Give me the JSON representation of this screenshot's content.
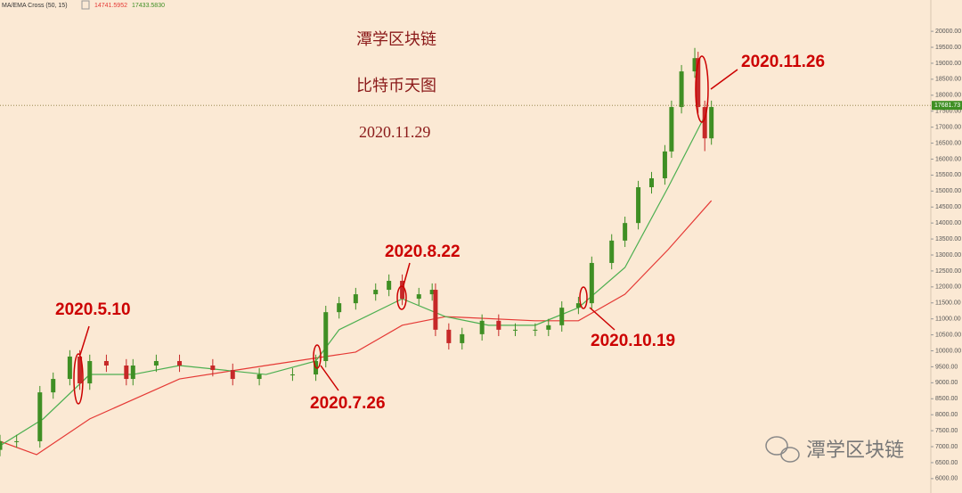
{
  "chart_data": {
    "type": "candlestick",
    "title": "潭学区块链",
    "subtitle": "比特币天图",
    "date": "2020.11.29",
    "indicator": "MA/EMA Cross (50, 15)",
    "indicator_readout": [
      {
        "value": 14741.5952,
        "label": "14741.5952"
      },
      {
        "value": 17433.583,
        "label": "17433.5830"
      }
    ],
    "watermark": "潭学区块链",
    "last_price": 17681.73,
    "xlim": [
      0,
      280
    ],
    "ylim": [
      5550,
      20980
    ],
    "yticks": [
      {
        "value": 6000,
        "label": "6000.00"
      },
      {
        "value": 6500,
        "label": "6500.00"
      },
      {
        "value": 7000,
        "label": "7000.00"
      },
      {
        "value": 7500,
        "label": "7500.00"
      },
      {
        "value": 8000,
        "label": "8000.00"
      },
      {
        "value": 8500,
        "label": "8500.00"
      },
      {
        "value": 9000,
        "label": "9000.00"
      },
      {
        "value": 9500,
        "label": "9500.00"
      },
      {
        "value": 10000,
        "label": "10000.00"
      },
      {
        "value": 10500,
        "label": "10500.00"
      },
      {
        "value": 11000,
        "label": "11000.00"
      },
      {
        "value": 11500,
        "label": "11500.00"
      },
      {
        "value": 12000,
        "label": "12000.00"
      },
      {
        "value": 12500,
        "label": "12500.00"
      },
      {
        "value": 13000,
        "label": "13000.00"
      },
      {
        "value": 13500,
        "label": "13500.00"
      },
      {
        "value": 14000,
        "label": "14000.00"
      },
      {
        "value": 14500,
        "label": "14500.00"
      },
      {
        "value": 15000,
        "label": "15000.00"
      },
      {
        "value": 15500,
        "label": "15500.00"
      },
      {
        "value": 16000,
        "label": "16000.00"
      },
      {
        "value": 16500,
        "label": "16500.00"
      },
      {
        "value": 17000,
        "label": "17000.00"
      },
      {
        "value": 17500,
        "label": "17500.00"
      },
      {
        "value": 18000,
        "label": "18000.00"
      },
      {
        "value": 18500,
        "label": "18500.00"
      },
      {
        "value": 19000,
        "label": "19000.00"
      },
      {
        "value": 19500,
        "label": "19500.00"
      },
      {
        "value": 20000,
        "label": "20000.00"
      }
    ],
    "up_color": "#3f8f24",
    "down_color": "#c62828",
    "candles": {
      "x": [
        0,
        5,
        12,
        16,
        21,
        24,
        27,
        32,
        38,
        40,
        47,
        54,
        64,
        70,
        78,
        88,
        95,
        98,
        102,
        107,
        113,
        117,
        121,
        126,
        130,
        131,
        135,
        139,
        145,
        150,
        155,
        161,
        165,
        169,
        174,
        178,
        184,
        188,
        192,
        196,
        200,
        202,
        205,
        209,
        210,
        212,
        214
      ],
      "open": [
        6900,
        7170,
        7170,
        8700,
        9120,
        9820,
        8980,
        9680,
        9540,
        9120,
        9540,
        9680,
        9540,
        9400,
        9120,
        9260,
        9260,
        9680,
        11210,
        11490,
        11770,
        11910,
        12190,
        11630,
        11770,
        11910,
        10660,
        10240,
        10520,
        10940,
        10660,
        10660,
        10660,
        10800,
        11350,
        11490,
        12750,
        13450,
        14000,
        15120,
        15400,
        16240,
        17630,
        18745,
        19160,
        17630,
        16650
      ],
      "high": [
        7370,
        7370,
        8900,
        9320,
        10020,
        10020,
        9880,
        9880,
        9740,
        9740,
        9880,
        9880,
        9740,
        9600,
        9460,
        9460,
        9880,
        11410,
        11690,
        11970,
        12110,
        12390,
        12390,
        11970,
        12110,
        12110,
        10860,
        10720,
        11140,
        11140,
        10860,
        10860,
        11000,
        11550,
        11690,
        12950,
        13650,
        14200,
        15320,
        15600,
        16440,
        17830,
        18945,
        19480,
        19360,
        17830,
        17830
      ],
      "low": [
        6700,
        6970,
        6970,
        8500,
        8920,
        8780,
        8780,
        9340,
        8920,
        8920,
        9340,
        9340,
        9200,
        8920,
        8920,
        9060,
        9060,
        9480,
        11010,
        11290,
        11570,
        11710,
        11430,
        11430,
        11570,
        10460,
        10040,
        10040,
        10320,
        10460,
        10460,
        10460,
        10460,
        10600,
        11150,
        11290,
        12550,
        13250,
        13800,
        14920,
        15200,
        16040,
        17430,
        18545,
        17430,
        16250,
        16450
      ],
      "close": [
        7170,
        7170,
        8700,
        9120,
        9820,
        8980,
        9680,
        9540,
        9120,
        9540,
        9680,
        9540,
        9400,
        9120,
        9260,
        9260,
        9680,
        11210,
        11490,
        11770,
        11910,
        12190,
        11630,
        11770,
        11910,
        10660,
        10240,
        10520,
        10940,
        10660,
        10660,
        10660,
        10800,
        11350,
        11490,
        12750,
        13450,
        14000,
        15120,
        15400,
        16240,
        17630,
        18745,
        19160,
        17630,
        16650,
        17630
      ]
    },
    "series": [
      {
        "color": "#e53935",
        "x": [
          0,
          11,
          27,
          54,
          80,
          107,
          121,
          134,
          161,
          174,
          188,
          201,
          214
        ],
        "values": [
          7170,
          6750,
          7870,
          9120,
          9540,
          9960,
          10800,
          11070,
          10940,
          10940,
          11770,
          13170,
          14700
        ]
      },
      {
        "color": "#4caf50",
        "x": [
          0,
          13,
          27,
          40,
          54,
          80,
          95,
          102,
          121,
          134,
          147,
          161,
          174,
          188,
          201,
          212
        ],
        "values": [
          7030,
          7870,
          9260,
          9260,
          9540,
          9260,
          9680,
          10660,
          11630,
          11070,
          10800,
          10800,
          11350,
          12610,
          15120,
          17350
        ]
      }
    ],
    "annotations": [
      "2020.5.10",
      "2020.7.26",
      "2020.8.22",
      "2020.10.19",
      "2020.11.26"
    ]
  }
}
